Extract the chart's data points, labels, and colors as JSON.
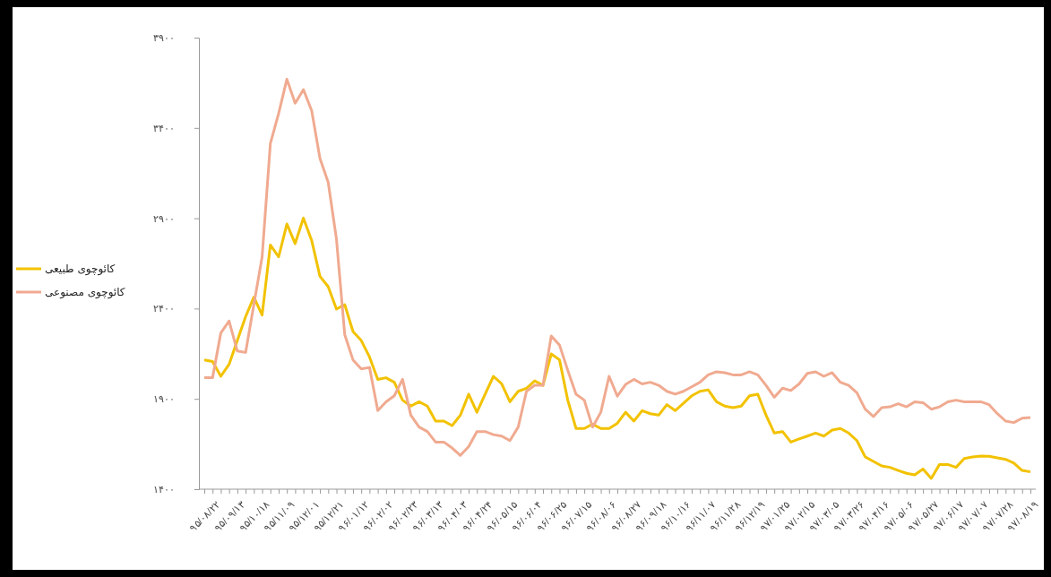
{
  "chart_data": {
    "type": "line",
    "categories": [
      "۹۵/۰۸/۲۲",
      null,
      null,
      "۹۵/۰۹/۱۳",
      null,
      null,
      "۹۵/۱۰/۱۸",
      null,
      null,
      "۹۵/۱۱/۰۹",
      null,
      null,
      "۹۵/۱۲/۰۱",
      null,
      null,
      "۹۵/۱۲/۲۱",
      null,
      null,
      "۹۶/۰۱/۱۲",
      null,
      null,
      "۹۶/۰۲/۰۲",
      null,
      null,
      "۹۶/۰۲/۲۳",
      null,
      null,
      "۹۶/۰۳/۱۳",
      null,
      null,
      "۹۶/۰۴/۰۳",
      null,
      null,
      "۹۶/۰۴/۲۴",
      null,
      null,
      "۹۶/۰۵/۱۵",
      null,
      null,
      "۹۶/۰۶/۰۴",
      null,
      null,
      "۹۶/۰۶/۲۵",
      null,
      null,
      "۹۶/۰۷/۱۵",
      null,
      null,
      "۹۶/۰۸/۰۶",
      null,
      null,
      "۹۶/۰۸/۲۷",
      null,
      null,
      "۹۶/۰۹/۱۸",
      null,
      null,
      "۹۶/۱۰/۱۶",
      null,
      null,
      "۹۶/۱۱/۰۷",
      null,
      null,
      "۹۶/۱۱/۲۸",
      null,
      null,
      "۹۶/۱۲/۱۹",
      null,
      null,
      "۹۷/۰۱/۲۵",
      null,
      null,
      "۹۷/۰۲/۱۵",
      null,
      null,
      "۹۷/۰۳/۰۵",
      null,
      null,
      "۹۷/۰۳/۲۶",
      null,
      null,
      "۹۷/۰۴/۱۶",
      null,
      null,
      "۹۷/۰۵/۰۶",
      null,
      null,
      "۹۷/۰۵/۲۷",
      null,
      null,
      "۹۷/۰۶/۱۷",
      null,
      null,
      "۹۷/۰۷/۰۷",
      null,
      null,
      "۹۷/۰۷/۲۸",
      null,
      null,
      "۹۷/۰۸/۱۹",
      null
    ],
    "series": [
      {
        "name": "کائوچوی طبیعی",
        "color": "#f2c200",
        "values": [
          2116,
          2107,
          2025,
          2091,
          2223,
          2355,
          2463,
          2364,
          2752,
          2686,
          2868,
          2760,
          2901,
          2777,
          2579,
          2521,
          2397,
          2422,
          2273,
          2223,
          2132,
          2008,
          2017,
          1992,
          1893,
          1860,
          1884,
          1860,
          1777,
          1777,
          1752,
          1810,
          1926,
          1826,
          1926,
          2025,
          1984,
          1884,
          1942,
          1959,
          2000,
          1975,
          2149,
          2116,
          1893,
          1736,
          1736,
          1760,
          1736,
          1736,
          1765,
          1826,
          1777,
          1835,
          1818,
          1810,
          1868,
          1835,
          1876,
          1917,
          1942,
          1950,
          1884,
          1860,
          1851,
          1860,
          1917,
          1926,
          1810,
          1711,
          1719,
          1661,
          1678,
          1694,
          1711,
          1694,
          1727,
          1736,
          1711,
          1669,
          1579,
          1554,
          1529,
          1521,
          1504,
          1488,
          1479,
          1512,
          1460,
          1537,
          1537,
          1521,
          1570,
          1579,
          1583,
          1582,
          1574,
          1565,
          1545,
          1504,
          1496
        ]
      },
      {
        "name": "کائوچوی مصنوعی",
        "color": "#f0aa90",
        "values": [
          2017,
          2017,
          2265,
          2331,
          2165,
          2157,
          2422,
          2686,
          3314,
          3480,
          3670,
          3537,
          3612,
          3496,
          3232,
          3099,
          2785,
          2256,
          2116,
          2066,
          2074,
          1835,
          1884,
          1917,
          2008,
          1810,
          1744,
          1719,
          1661,
          1661,
          1628,
          1587,
          1636,
          1719,
          1719,
          1702,
          1694,
          1669,
          1744,
          1942,
          1975,
          1975,
          2248,
          2198,
          2058,
          1926,
          1893,
          1744,
          1826,
          2025,
          1915,
          1980,
          2008,
          1983,
          1992,
          1975,
          1942,
          1926,
          1942,
          1967,
          1992,
          2033,
          2050,
          2045,
          2033,
          2033,
          2050,
          2033,
          1975,
          1909,
          1959,
          1946,
          1983,
          2041,
          2050,
          2025,
          2045,
          1992,
          1975,
          1934,
          1843,
          1802,
          1851,
          1856,
          1873,
          1856,
          1884,
          1879,
          1843,
          1856,
          1884,
          1893,
          1884,
          1884,
          1884,
          1868,
          1818,
          1777,
          1769,
          1793,
          1797
        ]
      }
    ],
    "ylim": [
      1400,
      3900
    ],
    "yticks": [
      {
        "value": 1400,
        "label": "۱۴۰۰"
      },
      {
        "value": 1900,
        "label": "۱۹۰۰"
      },
      {
        "value": 2400,
        "label": "۲۴۰۰"
      },
      {
        "value": 2900,
        "label": "۲۹۰۰"
      },
      {
        "value": 3400,
        "label": "۳۴۰۰"
      },
      {
        "value": 3900,
        "label": "۳۹۰۰"
      }
    ],
    "grid": false,
    "legend": "left",
    "marker": "none",
    "line_style": "solid"
  }
}
